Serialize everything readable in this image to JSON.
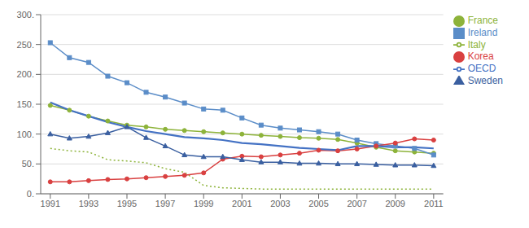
{
  "chart_data": {
    "type": "line",
    "x": [
      1991,
      1992,
      1993,
      1994,
      1995,
      1996,
      1997,
      1998,
      1999,
      2000,
      2001,
      2002,
      2003,
      2004,
      2005,
      2006,
      2007,
      2008,
      2009,
      2010,
      2011
    ],
    "series": [
      {
        "name": "France",
        "color": "#8DB33A",
        "marker": "circle",
        "line_style": "solid",
        "values": [
          148,
          140,
          130,
          122,
          115,
          112,
          108,
          106,
          104,
          102,
          100,
          98,
          96,
          94,
          93,
          91,
          85,
          78,
          72,
          70,
          68
        ]
      },
      {
        "name": "Ireland",
        "color": "#5B8DC8",
        "marker": "square",
        "line_style": "solid",
        "values": [
          253,
          228,
          220,
          197,
          186,
          170,
          162,
          152,
          142,
          140,
          127,
          115,
          110,
          107,
          104,
          100,
          90,
          84,
          80,
          76,
          65
        ]
      },
      {
        "name": "Italy",
        "color": "#8DB33A",
        "marker": "none",
        "line_style": "dotted",
        "values": [
          76,
          72,
          70,
          57,
          55,
          52,
          42,
          36,
          14,
          10,
          9,
          8,
          8,
          8,
          8,
          8,
          8,
          8,
          8,
          8,
          8
        ]
      },
      {
        "name": "Korea",
        "color": "#D94040",
        "marker": "circle",
        "line_style": "solid",
        "values": [
          20,
          20,
          22,
          24,
          25,
          27,
          29,
          31,
          35,
          58,
          63,
          62,
          65,
          68,
          73,
          72,
          75,
          80,
          85,
          92,
          90
        ]
      },
      {
        "name": "Sweden",
        "color": "#3A5FA0",
        "marker": "triangle",
        "line_style": "solid",
        "values": [
          100,
          93,
          96,
          102,
          112,
          94,
          80,
          65,
          62,
          62,
          57,
          53,
          53,
          51,
          51,
          50,
          50,
          49,
          48,
          48,
          47
        ]
      },
      {
        "name": "OECD",
        "color": "#4472C4",
        "marker": "none",
        "line_style": "solid",
        "values": [
          153,
          140,
          130,
          120,
          112,
          105,
          100,
          95,
          93,
          90,
          85,
          83,
          80,
          77,
          75,
          73,
          80,
          80,
          78,
          78,
          76
        ]
      }
    ],
    "xlim": [
      1990.5,
      2011.5
    ],
    "xticks": [
      1991,
      1993,
      1995,
      1997,
      1999,
      2001,
      2003,
      2005,
      2007,
      2009,
      2011
    ],
    "ylim": [
      0,
      300
    ],
    "yticks": [
      {
        "value": 0,
        "label": "0."
      },
      {
        "value": 50,
        "label": "50."
      },
      {
        "value": 100,
        "label": "100."
      },
      {
        "value": 150,
        "label": "150."
      },
      {
        "value": 200,
        "label": "200."
      },
      {
        "value": 250,
        "label": "250."
      },
      {
        "value": 300,
        "label": "300."
      }
    ],
    "grid": "y",
    "legend": "upper right"
  }
}
